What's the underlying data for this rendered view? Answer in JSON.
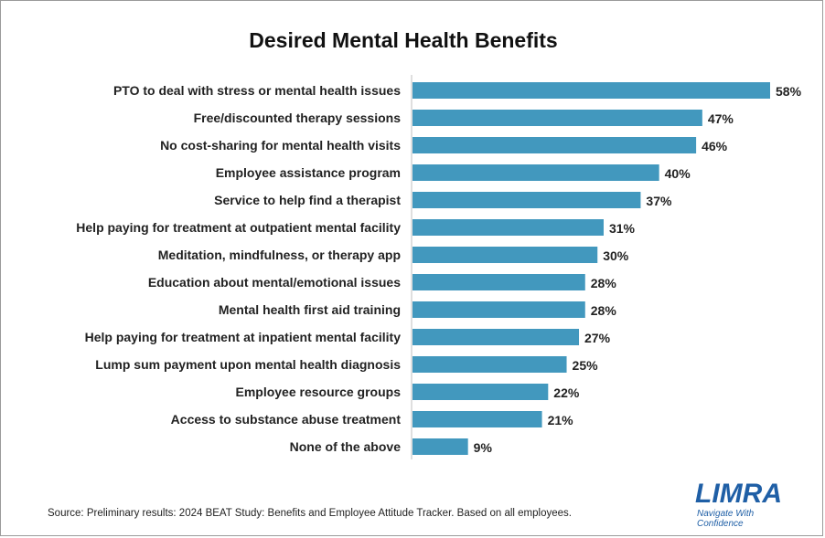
{
  "colors": {
    "bar": "#4298be",
    "axis": "#bfbfbf",
    "logo": "#1f5fa6"
  },
  "chart_data": {
    "type": "bar",
    "orientation": "horizontal",
    "title": "Desired Mental Health Benefits",
    "xlabel": "",
    "ylabel": "",
    "xlim": [
      0,
      58
    ],
    "grid": false,
    "legend": "none",
    "value_suffix": "%",
    "categories": [
      "PTO to deal with stress or mental health issues",
      "Free/discounted therapy sessions",
      "No cost-sharing for mental health visits",
      "Employee assistance program",
      "Service to help find a therapist",
      "Help paying for treatment at outpatient mental facility",
      "Meditation, mindfulness, or therapy app",
      "Education about mental/emotional issues",
      "Mental health first aid training",
      "Help paying for treatment at inpatient mental facility",
      "Lump sum payment upon mental health diagnosis",
      "Employee resource groups",
      "Access to substance abuse treatment",
      "None of the above"
    ],
    "values": [
      58,
      47,
      46,
      40,
      37,
      31,
      30,
      28,
      28,
      27,
      25,
      22,
      21,
      9
    ]
  },
  "source": "Source: Preliminary results: 2024 BEAT Study: Benefits and Employee Attitude Tracker. Based on all employees.",
  "logo": {
    "name": "LIMRA",
    "tagline_line1": "Navigate With",
    "tagline_line2": "Confidence"
  }
}
